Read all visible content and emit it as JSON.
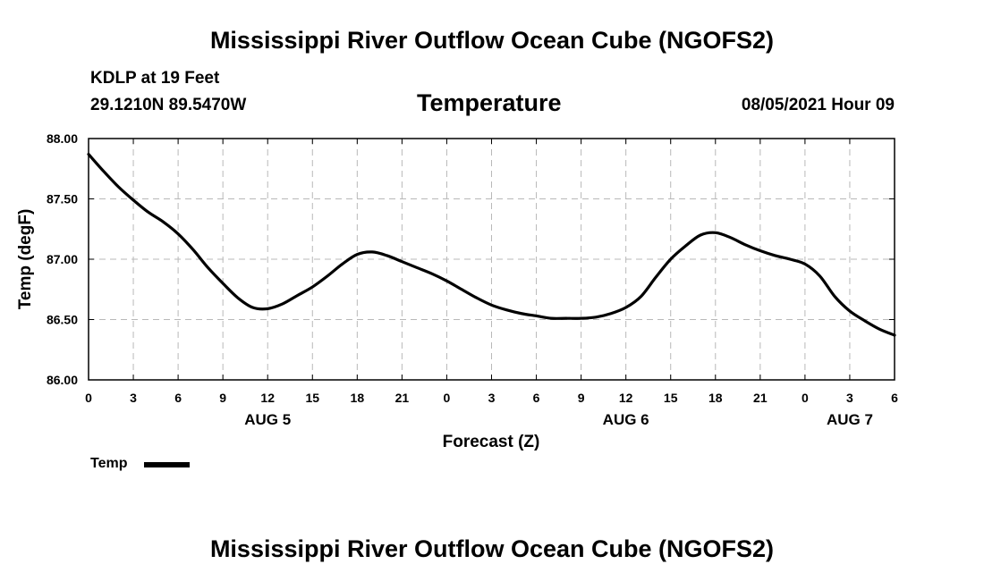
{
  "page": {
    "title": "Mississippi River Outflow Ocean Cube (NGOFS2)",
    "footer_title": "Mississippi River Outflow Ocean Cube (NGOFS2)",
    "station": "KDLP at 19 Feet",
    "coordinates": "29.1210N  89.5470W",
    "variable": "Temperature",
    "datetime": "08/05/2021 Hour 09"
  },
  "chart_data": {
    "type": "line",
    "title": "Temperature",
    "xlabel": "Forecast (Z)",
    "ylabel": "Temp (degF)",
    "ylim": [
      86.0,
      88.0
    ],
    "xlim": [
      0,
      54
    ],
    "grid": true,
    "yticks": [
      "86.00",
      "86.50",
      "87.00",
      "87.50",
      "88.00"
    ],
    "ytick_values": [
      86.0,
      86.5,
      87.0,
      87.5,
      88.0
    ],
    "xticks": [
      "0",
      "3",
      "6",
      "9",
      "12",
      "15",
      "18",
      "21",
      "0",
      "3",
      "6",
      "9",
      "12",
      "15",
      "18",
      "21",
      "0",
      "3",
      "6"
    ],
    "xtick_hours": [
      0,
      3,
      6,
      9,
      12,
      15,
      18,
      21,
      24,
      27,
      30,
      33,
      36,
      39,
      42,
      45,
      48,
      51,
      54
    ],
    "day_labels": [
      {
        "hour": 12,
        "label": "AUG 5"
      },
      {
        "hour": 36,
        "label": "AUG 6"
      },
      {
        "hour": 51,
        "label": "AUG 7"
      }
    ],
    "legend": "top-left below axis",
    "series": [
      {
        "name": "Temp",
        "color": "#000000",
        "x": [
          0,
          1,
          2,
          3,
          4,
          5,
          6,
          7,
          8,
          9,
          10,
          11,
          12,
          13,
          14,
          15,
          16,
          17,
          18,
          19,
          20,
          21,
          22,
          23,
          24,
          25,
          26,
          27,
          28,
          29,
          30,
          31,
          32,
          33,
          34,
          35,
          36,
          37,
          38,
          39,
          40,
          41,
          42,
          43,
          44,
          45,
          46,
          47,
          48,
          49,
          50,
          51,
          52,
          53,
          54
        ],
        "values": [
          87.87,
          87.73,
          87.6,
          87.49,
          87.39,
          87.31,
          87.21,
          87.08,
          86.93,
          86.8,
          86.68,
          86.6,
          86.59,
          86.63,
          86.7,
          86.77,
          86.86,
          86.96,
          87.04,
          87.06,
          87.03,
          86.98,
          86.93,
          86.88,
          86.82,
          86.75,
          86.68,
          86.62,
          86.58,
          86.55,
          86.53,
          86.51,
          86.51,
          86.51,
          86.52,
          86.55,
          86.6,
          86.69,
          86.85,
          87.0,
          87.11,
          87.2,
          87.22,
          87.18,
          87.12,
          87.07,
          87.03,
          87.0,
          86.96,
          86.86,
          86.69,
          86.57,
          86.49,
          86.42,
          86.37
        ]
      }
    ]
  }
}
